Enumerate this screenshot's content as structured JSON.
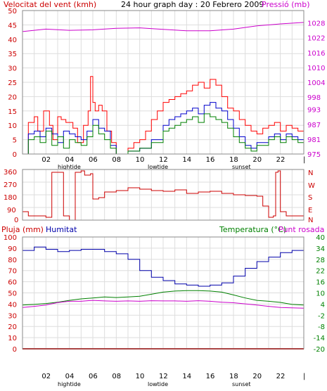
{
  "colors": {
    "wind_avg": "#008000",
    "wind_gust": "#ff0000",
    "wind_blue": "#0000cc",
    "pressure": "#cc00cc",
    "direction": "#cc0000",
    "humidity": "#0000aa",
    "temperature": "#008000",
    "dewpoint": "#cc00cc",
    "rain": "#cc0000",
    "axis_left": "#cc0000",
    "grid": "#dddddd",
    "frame": "#888888"
  },
  "panel1": {
    "title_left": "Velocitat del vent (kmh)",
    "title_center": "24 hour graph day : 20 Febrero 2009",
    "title_right": "Pressió (mb)"
  },
  "panel2": {
    "left_ticks": [
      "360",
      "270",
      "180",
      "90",
      "0"
    ],
    "right_labels": [
      "N",
      "W",
      "S",
      "E",
      "N"
    ]
  },
  "panel3": {
    "title_rain": "Pluja (mm)",
    "title_humidity": "Humitat",
    "title_temp": "Temperatura (°C)",
    "title_dew": "Punt rosada"
  },
  "hour_labels": [
    "02",
    "04",
    "06",
    "08",
    "10",
    "12",
    "14",
    "16",
    "18",
    "20",
    "22",
    "|"
  ],
  "event_labels": {
    "hightide": "hightide",
    "lowtide": "lowtide",
    "sunset": "sunset"
  },
  "chart_data": [
    {
      "type": "line",
      "title": "24 hour graph day : 20 Febrero 2009",
      "x_unit": "hour",
      "xlim": [
        0,
        24
      ],
      "ylim": [
        0,
        50
      ],
      "y_ticks": [
        0,
        5,
        10,
        15,
        20,
        25,
        30,
        35,
        40,
        45,
        50
      ],
      "ylabel": "Velocitat del vent (kmh)",
      "y2label": "Pressió (mb)",
      "y2lim": [
        975,
        1033
      ],
      "y2_ticks": [
        975,
        981,
        987,
        993,
        998,
        1004,
        1010,
        1016,
        1022,
        1028
      ],
      "series": [
        {
          "role": "wind_gust",
          "x": [
            0,
            0.5,
            1,
            1.3,
            1.8,
            2.3,
            2.6,
            3.0,
            3.3,
            3.7,
            4.3,
            4.7,
            5.2,
            5.6,
            5.8,
            6.0,
            6.2,
            6.5,
            6.8,
            7.2,
            7.6,
            8.0,
            8.5,
            9.0,
            9.5,
            10.0,
            10.5,
            11.0,
            11.5,
            12.0,
            12.5,
            13.0,
            13.5,
            14.0,
            14.5,
            15.0,
            15.5,
            16.0,
            16.5,
            17.0,
            17.5,
            18.0,
            18.5,
            19.0,
            19.5,
            20.0,
            20.5,
            21.0,
            21.5,
            22.0,
            22.5,
            23.0,
            23.5,
            24.0
          ],
          "values": [
            0,
            11,
            13,
            8,
            15,
            10,
            5,
            13,
            12,
            11,
            9,
            4,
            10,
            15,
            27,
            18,
            15,
            17,
            15,
            8,
            4,
            0,
            0,
            2,
            4,
            5,
            8,
            12,
            15,
            18,
            19,
            20,
            21,
            22,
            24,
            25,
            23,
            26,
            24,
            20,
            16,
            15,
            12,
            10,
            8,
            7,
            9,
            10,
            11,
            8,
            10,
            9,
            8,
            7
          ]
        },
        {
          "role": "wind_blue",
          "x": [
            0,
            0.5,
            1,
            1.5,
            2,
            2.5,
            3,
            3.5,
            4,
            4.5,
            5,
            5.5,
            6,
            6.5,
            7,
            7.5,
            8,
            9,
            10,
            11,
            12,
            12.5,
            13,
            13.5,
            14,
            14.5,
            15,
            15.5,
            16,
            16.5,
            17,
            17.5,
            18,
            18.5,
            19,
            19.5,
            20,
            21,
            21.5,
            22,
            22.5,
            23,
            23.5,
            24
          ],
          "values": [
            0,
            7,
            8,
            6,
            9,
            7,
            4,
            8,
            7,
            6,
            5,
            8,
            12,
            9,
            8,
            3,
            0,
            1,
            2,
            5,
            10,
            12,
            13,
            14,
            15,
            16,
            14,
            17,
            18,
            16,
            15,
            12,
            9,
            6,
            3,
            2,
            4,
            6,
            7,
            5,
            7,
            6,
            5,
            4
          ]
        },
        {
          "role": "wind_avg",
          "x": [
            0,
            0.5,
            1,
            1.5,
            2,
            2.5,
            3,
            3.5,
            4,
            4.5,
            5,
            5.5,
            6,
            6.5,
            7,
            7.5,
            8,
            9,
            10,
            11,
            12,
            12.5,
            13,
            13.5,
            14,
            14.5,
            15,
            15.5,
            16,
            16.5,
            17,
            17.5,
            18,
            18.5,
            19,
            19.5,
            20,
            21,
            21.5,
            22,
            22.5,
            23,
            23.5,
            24
          ],
          "values": [
            0,
            5,
            6,
            4,
            8,
            3,
            6,
            2,
            5,
            4,
            3,
            6,
            10,
            7,
            5,
            2,
            0,
            1,
            2,
            4,
            8,
            9,
            10,
            11,
            12,
            13,
            11,
            14,
            13,
            12,
            11,
            9,
            6,
            4,
            2,
            1,
            3,
            5,
            6,
            4,
            6,
            5,
            4,
            3
          ]
        },
        {
          "role": "pressure",
          "name": "Pressió (mb)",
          "x": [
            0,
            2,
            4,
            6,
            8,
            10,
            12,
            14,
            16,
            18,
            20,
            22,
            24
          ],
          "values": [
            1024.5,
            1025.5,
            1025.0,
            1025.2,
            1025.8,
            1026.0,
            1025.4,
            1024.8,
            1024.8,
            1025.5,
            1026.8,
            1027.6,
            1028.2
          ]
        }
      ]
    },
    {
      "type": "line",
      "xlim": [
        0,
        24
      ],
      "ylim": [
        0,
        360
      ],
      "y_ticks": [
        0,
        90,
        180,
        270,
        360
      ],
      "series": [
        {
          "role": "direction",
          "x": [
            0,
            0.5,
            1.0,
            2.0,
            2.5,
            2.8,
            3.0,
            3.5,
            4.0,
            4.5,
            5.0,
            5.3,
            5.8,
            6.0,
            6.5,
            7.0,
            8.0,
            9.0,
            10.0,
            11.0,
            12.0,
            13.0,
            14.0,
            15.0,
            16.0,
            17.0,
            18.0,
            19.0,
            20.0,
            20.5,
            21.0,
            21.4,
            21.6,
            21.8,
            22.0,
            22.5,
            23.0,
            24.0
          ],
          "values": [
            60,
            30,
            30,
            20,
            340,
            340,
            340,
            30,
            0,
            340,
            350,
            320,
            330,
            150,
            160,
            200,
            210,
            230,
            220,
            210,
            205,
            215,
            190,
            200,
            205,
            190,
            180,
            175,
            170,
            100,
            20,
            30,
            340,
            350,
            60,
            30,
            30,
            20
          ]
        }
      ]
    },
    {
      "type": "line",
      "xlim": [
        0,
        24
      ],
      "title": "Pluja (mm)",
      "ylim": [
        0,
        100
      ],
      "y_ticks": [
        0,
        10,
        20,
        30,
        40,
        50,
        60,
        70,
        80,
        90,
        100
      ],
      "y2lim": [
        -20,
        40
      ],
      "y2_ticks": [
        -20,
        -14,
        -8,
        -2,
        4,
        10,
        16,
        22,
        28,
        34,
        40
      ],
      "series": [
        {
          "role": "humidity",
          "name": "Humitat",
          "x": [
            0,
            1,
            2,
            3,
            4,
            5,
            6,
            7,
            8,
            9,
            10,
            11,
            12,
            13,
            14,
            15,
            16,
            17,
            18,
            19,
            20,
            21,
            22,
            23,
            24
          ],
          "values": [
            88,
            91,
            89,
            87,
            88,
            89,
            89,
            87,
            85,
            80,
            70,
            64,
            61,
            58,
            57,
            56,
            57,
            59,
            65,
            72,
            78,
            82,
            86,
            88,
            89
          ]
        },
        {
          "role": "temperature",
          "name": "Temperatura (°C)",
          "x": [
            0,
            1,
            2,
            3,
            4,
            5,
            6,
            7,
            8,
            9,
            10,
            11,
            12,
            13,
            14,
            15,
            16,
            17,
            18,
            19,
            20,
            21,
            22,
            23,
            24
          ],
          "values": [
            3.5,
            3.8,
            4.3,
            5.0,
            6.0,
            6.8,
            7.3,
            7.8,
            7.5,
            7.8,
            8.2,
            9.3,
            10.4,
            11.0,
            11.2,
            11.2,
            11.0,
            10.4,
            8.9,
            7.3,
            6.0,
            5.5,
            4.9,
            3.8,
            3.5
          ]
        },
        {
          "role": "dewpoint",
          "name": "Punt rosada",
          "x": [
            0,
            1,
            2,
            3,
            4,
            5,
            6,
            7,
            8,
            9,
            10,
            11,
            12,
            13,
            14,
            15,
            16,
            17,
            18,
            19,
            20,
            21,
            22,
            23,
            24
          ],
          "values": [
            2.2,
            2.8,
            3.5,
            4.8,
            5.5,
            5.5,
            6.0,
            5.7,
            5.5,
            5.7,
            5.5,
            5.8,
            5.7,
            5.7,
            5.5,
            5.8,
            5.5,
            5.0,
            4.7,
            4.1,
            3.5,
            2.8,
            2.2,
            2.0,
            1.8
          ]
        },
        {
          "role": "rain",
          "name": "Pluja (mm)",
          "x": [
            0,
            24
          ],
          "values": [
            0,
            0
          ]
        }
      ]
    }
  ]
}
